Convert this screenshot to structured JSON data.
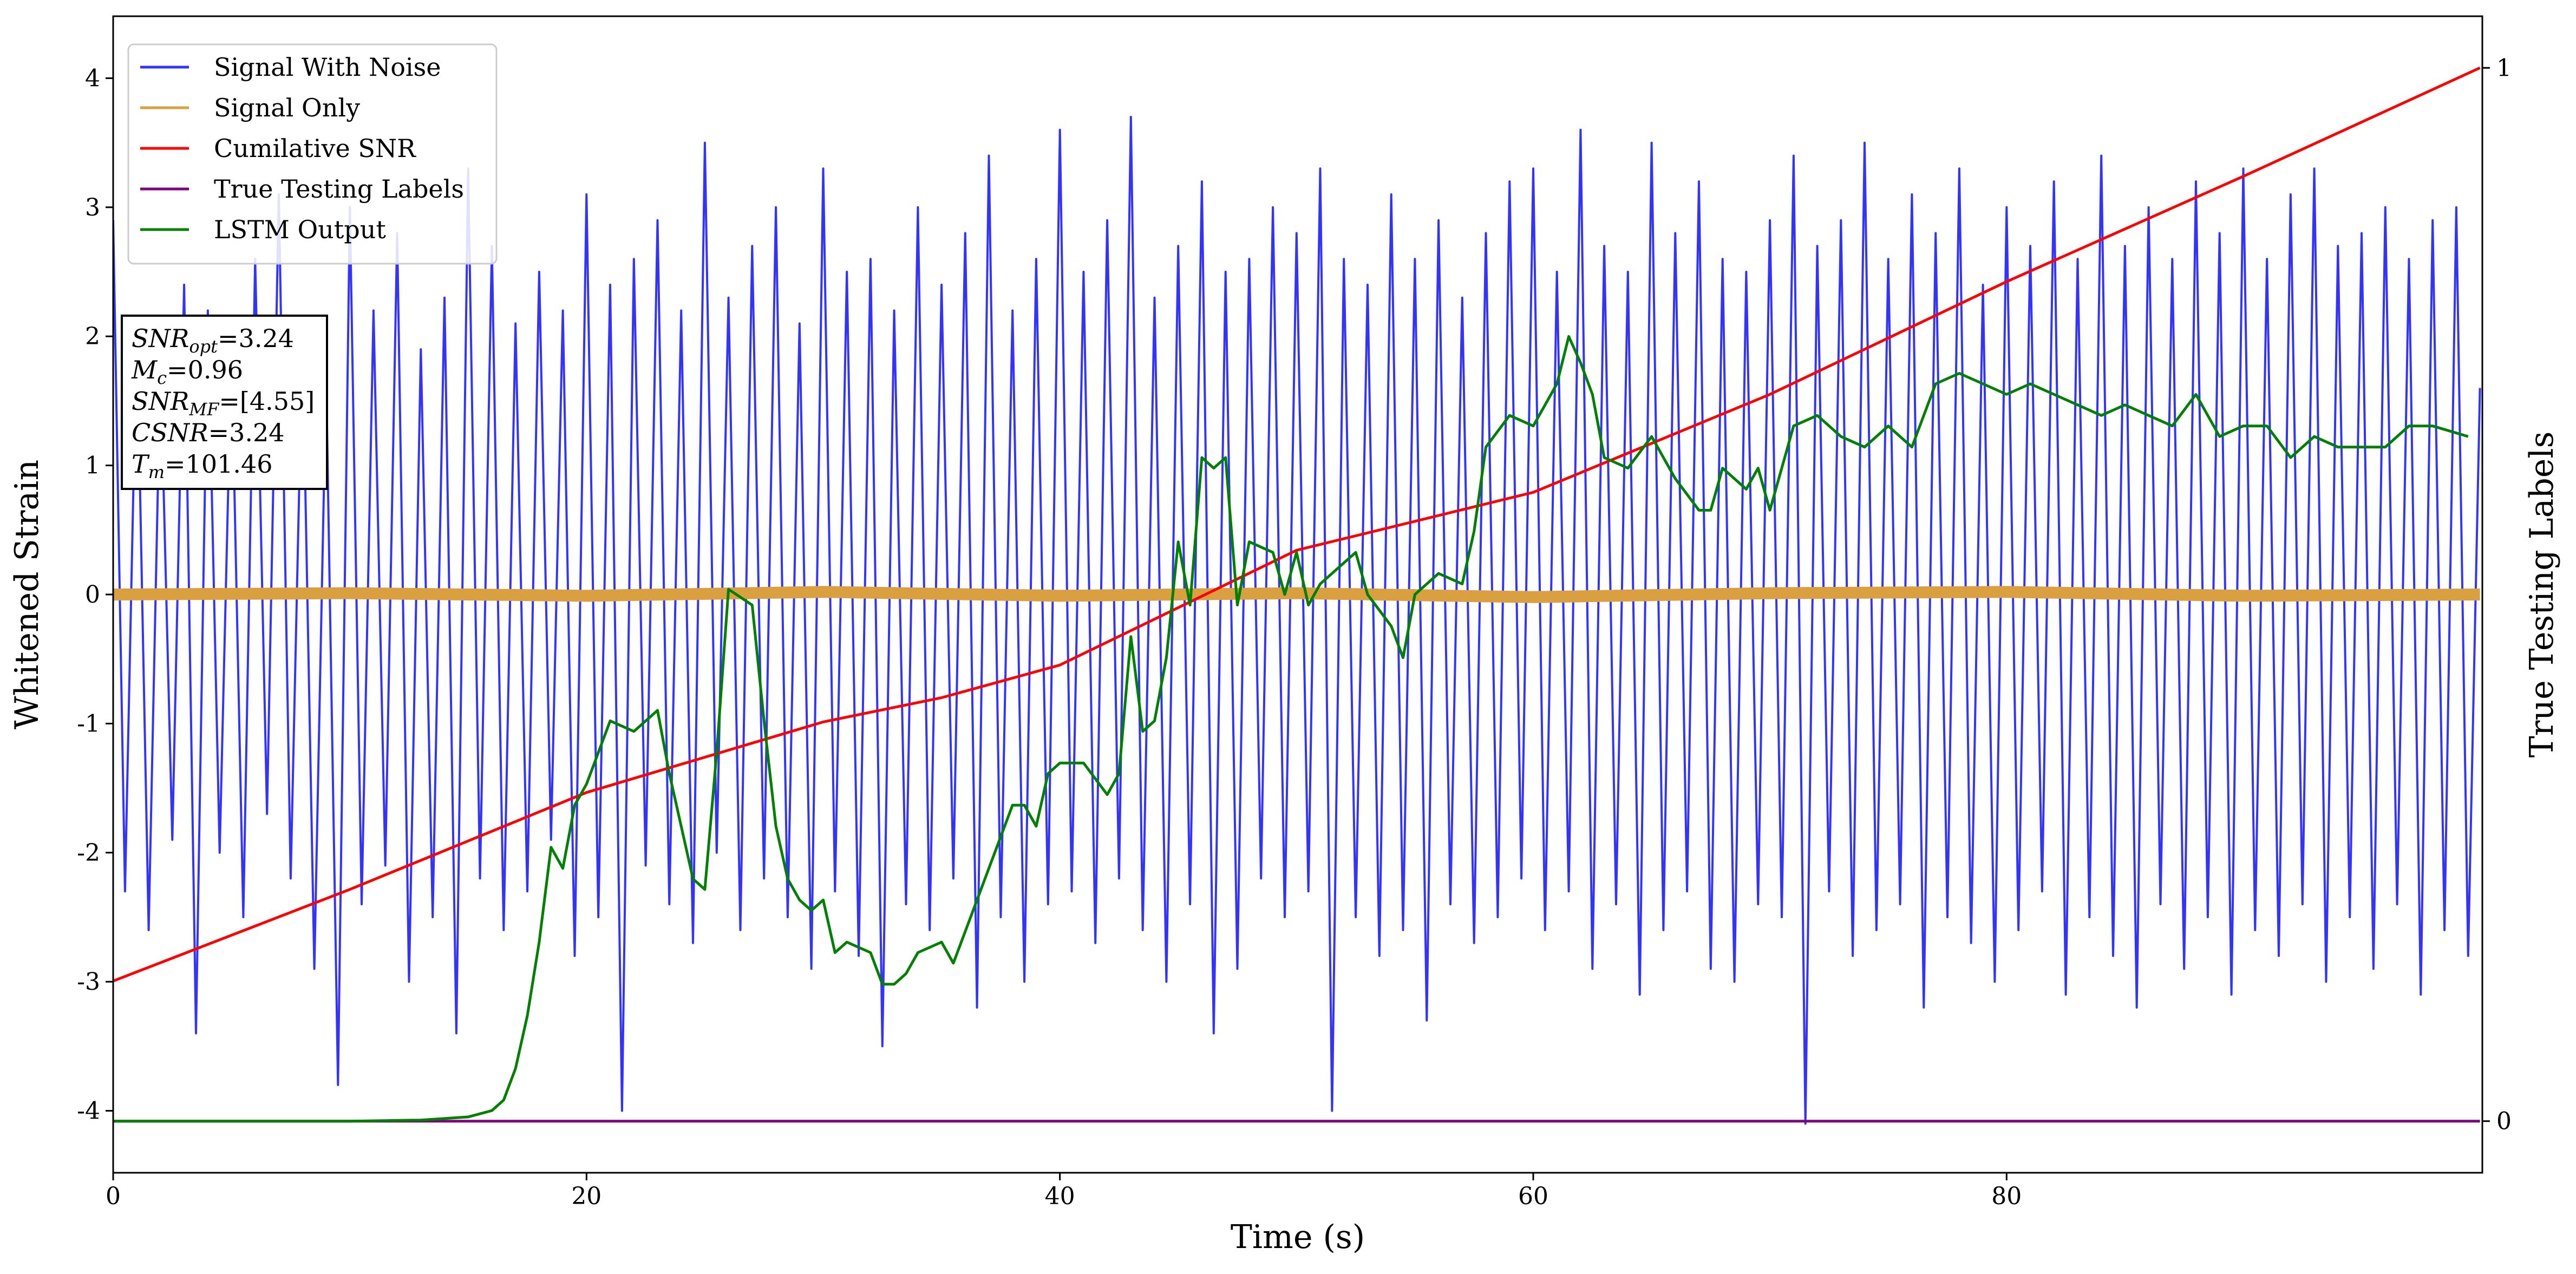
{
  "chart_data": {
    "type": "line",
    "xlabel": "Time (s)",
    "ylabel": "Whitened Strain",
    "y2label": "True Testing Labels",
    "xlim": [
      0,
      100.1
    ],
    "ylim": [
      -4.48,
      4.48
    ],
    "y2lim": [
      -0.049,
      1.049
    ],
    "xticks": [
      0,
      20,
      40,
      60,
      80
    ],
    "yticks": [
      -4,
      -3,
      -2,
      -1,
      0,
      1,
      2,
      3,
      4
    ],
    "y2ticks": [
      0,
      1
    ],
    "legend": "upper left",
    "annotation": [
      {
        "base": "SNR",
        "sub": "opt",
        "text": "=3.24"
      },
      {
        "base": "M",
        "sub": "c",
        "text": "=0.96"
      },
      {
        "base": "SNR",
        "sub": "MF",
        "text": "=[4.55]"
      },
      {
        "base": "CSNR",
        "sub": null,
        "text": "=3.24"
      },
      {
        "base": "T",
        "sub": "m",
        "text": "=101.46"
      }
    ],
    "series": [
      {
        "name": "Signal With Noise",
        "color": "#3333ff",
        "axis": "y",
        "x": [
          0,
          0.5,
          1,
          1.5,
          2,
          2.5,
          3,
          3.5,
          4,
          4.5,
          5,
          5.5,
          6,
          6.5,
          7,
          7.5,
          8,
          8.5,
          9,
          9.5,
          10,
          10.5,
          11,
          11.5,
          12,
          12.5,
          13,
          13.5,
          14,
          14.5,
          15,
          15.5,
          16,
          16.5,
          17,
          17.5,
          18,
          18.5,
          19,
          19.5,
          20,
          20.5,
          21,
          21.5,
          22,
          22.5,
          23,
          23.5,
          24,
          24.5,
          25,
          25.5,
          26,
          26.5,
          27,
          27.5,
          28,
          28.5,
          29,
          29.5,
          30,
          30.5,
          31,
          31.5,
          32,
          32.5,
          33,
          33.5,
          34,
          34.5,
          35,
          35.5,
          36,
          36.5,
          37,
          37.5,
          38,
          38.5,
          39,
          39.5,
          40,
          40.5,
          41,
          41.5,
          42,
          42.5,
          43,
          43.5,
          44,
          44.5,
          45,
          45.5,
          46,
          46.5,
          47,
          47.5,
          48,
          48.5,
          49,
          49.5,
          50,
          50.5,
          51,
          51.5,
          52,
          52.5,
          53,
          53.5,
          54,
          54.5,
          55,
          55.5,
          56,
          56.5,
          57,
          57.5,
          58,
          58.5,
          59,
          59.5,
          60,
          60.5,
          61,
          61.5,
          62,
          62.5,
          63,
          63.5,
          64,
          64.5,
          65,
          65.5,
          66,
          66.5,
          67,
          67.5,
          68,
          68.5,
          69,
          69.5,
          70,
          70.5,
          71,
          71.5,
          72,
          72.5,
          73,
          73.5,
          74,
          74.5,
          75,
          75.5,
          76,
          76.5,
          77,
          77.5,
          78,
          78.5,
          79,
          79.5,
          80,
          80.5,
          81,
          81.5,
          82,
          82.5,
          83,
          83.5,
          84,
          84.5,
          85,
          85.5,
          86,
          86.5,
          87,
          87.5,
          88,
          88.5,
          89,
          89.5,
          90,
          90.5,
          91,
          91.5,
          92,
          92.5,
          93,
          93.5,
          94,
          94.5,
          95,
          95.5,
          96,
          96.5,
          97,
          97.5,
          98,
          98.5,
          99,
          99.5,
          100
        ],
        "values": [
          2.9,
          -2.3,
          2.1,
          -2.6,
          1.8,
          -1.9,
          2.4,
          -3.4,
          2.2,
          -2.0,
          1.9,
          -2.5,
          2.6,
          -1.7,
          3.1,
          -2.2,
          2.0,
          -2.9,
          1.7,
          -3.8,
          3.0,
          -2.4,
          2.2,
          -2.1,
          2.8,
          -3.0,
          1.9,
          -2.5,
          2.3,
          -3.4,
          3.3,
          -2.2,
          2.7,
          -2.6,
          2.1,
          -2.3,
          2.5,
          -1.9,
          2.2,
          -2.8,
          3.1,
          -2.5,
          2.4,
          -4.0,
          2.6,
          -2.1,
          2.9,
          -2.4,
          2.2,
          -2.7,
          3.5,
          -2.0,
          2.3,
          -2.6,
          2.7,
          -2.2,
          3.0,
          -2.5,
          2.1,
          -2.9,
          3.3,
          -2.3,
          2.5,
          -2.8,
          2.6,
          -3.5,
          2.2,
          -2.4,
          3.0,
          -2.6,
          2.4,
          -2.2,
          2.8,
          -3.2,
          3.4,
          -2.5,
          2.2,
          -3.0,
          2.6,
          -2.4,
          3.6,
          -2.3,
          2.5,
          -2.7,
          2.9,
          -2.2,
          3.7,
          -2.6,
          2.3,
          -3.0,
          2.7,
          -2.4,
          3.2,
          -3.4,
          2.5,
          -2.9,
          2.6,
          -2.2,
          3.0,
          -2.5,
          2.8,
          -2.3,
          3.3,
          -4.0,
          2.6,
          -2.5,
          2.4,
          -2.8,
          3.1,
          -2.6,
          2.6,
          -3.3,
          2.9,
          -2.4,
          2.3,
          -2.7,
          2.8,
          -2.5,
          3.2,
          -2.2,
          3.3,
          -2.6,
          2.5,
          -2.3,
          3.6,
          -2.9,
          2.7,
          -2.4,
          2.5,
          -3.1,
          3.5,
          -2.6,
          2.8,
          -2.3,
          3.2,
          -2.9,
          2.6,
          -3.0,
          2.5,
          -2.4,
          2.9,
          -2.5,
          3.4,
          -4.1,
          2.7,
          -2.3,
          2.9,
          -2.8,
          3.5,
          -2.6,
          2.6,
          -2.4,
          3.1,
          -3.2,
          2.8,
          -2.5,
          3.3,
          -2.7,
          2.4,
          -3.0,
          3.0,
          -2.6,
          2.7,
          -2.3,
          3.2,
          -3.1,
          2.6,
          -2.5,
          3.4,
          -2.8,
          2.7,
          -3.2,
          3.0,
          -2.4,
          2.6,
          -2.9,
          3.2,
          -2.5,
          2.8,
          -3.1,
          3.3,
          -2.6,
          2.6,
          -2.8,
          3.1,
          -2.4,
          3.3,
          -3.0,
          2.7,
          -2.5,
          2.8,
          -2.9,
          3.0,
          -2.4,
          2.6,
          -3.1,
          2.9,
          -2.6,
          3.0,
          -2.8,
          1.6
        ]
      },
      {
        "name": "Signal Only",
        "color": "#daa040",
        "axis": "y",
        "x": [
          0,
          10,
          20,
          30,
          40,
          50,
          60,
          70,
          80,
          90,
          100
        ],
        "values": [
          0,
          0.01,
          -0.01,
          0.02,
          -0.01,
          0.01,
          -0.02,
          0.01,
          0.02,
          -0.01,
          0
        ]
      },
      {
        "name": "Cumilative SNR",
        "color": "#ff0000",
        "axis": "y2",
        "x": [
          0,
          10,
          20,
          30,
          35,
          40,
          50,
          60,
          70,
          80,
          90,
          100
        ],
        "values": [
          0.133,
          0.22,
          0.312,
          0.379,
          0.402,
          0.433,
          0.542,
          0.597,
          0.69,
          0.797,
          0.897,
          1.0
        ]
      },
      {
        "name": "True Testing Labels",
        "color": "#800080",
        "axis": "y2",
        "x": [
          0,
          100
        ],
        "values": [
          0,
          0
        ]
      },
      {
        "name": "LSTM Output",
        "color": "#008000",
        "axis": "y2",
        "x": [
          0,
          5,
          10,
          13,
          15,
          16,
          16.5,
          17,
          17.5,
          18,
          18.5,
          19,
          19.5,
          20,
          20.5,
          21,
          22,
          23,
          23.5,
          24,
          24.5,
          25,
          25.5,
          26,
          27,
          27.5,
          28,
          28.5,
          29,
          29.5,
          30,
          30.5,
          31,
          32,
          32.5,
          33,
          33.5,
          34,
          35,
          35.5,
          36,
          37,
          38,
          38.5,
          39,
          39.5,
          40,
          41,
          42,
          42.5,
          43,
          43.5,
          44,
          44.5,
          45,
          45.5,
          46,
          46.5,
          47,
          47.5,
          48,
          49,
          49.5,
          50,
          50.5,
          51,
          52,
          52.5,
          53,
          54,
          54.5,
          55,
          56,
          57,
          57.5,
          58,
          59,
          60,
          61,
          61.5,
          62,
          62.5,
          63,
          64,
          65,
          66,
          67,
          67.5,
          68,
          69,
          69.5,
          70,
          71,
          72,
          73,
          74,
          75,
          76,
          77,
          78,
          79,
          80,
          81,
          82,
          83,
          84,
          85,
          86,
          87,
          88,
          89,
          90,
          91,
          92,
          93,
          94,
          95,
          96,
          97,
          98,
          99.5
        ],
        "values": [
          0,
          0,
          0,
          0.001,
          0.004,
          0.01,
          0.02,
          0.05,
          0.1,
          0.17,
          0.26,
          0.24,
          0.3,
          0.32,
          0.35,
          0.38,
          0.37,
          0.39,
          0.33,
          0.28,
          0.23,
          0.22,
          0.35,
          0.505,
          0.49,
          0.38,
          0.28,
          0.23,
          0.21,
          0.2,
          0.21,
          0.16,
          0.17,
          0.16,
          0.13,
          0.13,
          0.14,
          0.16,
          0.17,
          0.15,
          0.18,
          0.24,
          0.3,
          0.3,
          0.28,
          0.33,
          0.34,
          0.34,
          0.31,
          0.33,
          0.46,
          0.37,
          0.38,
          0.44,
          0.55,
          0.49,
          0.63,
          0.62,
          0.63,
          0.49,
          0.55,
          0.54,
          0.5,
          0.54,
          0.49,
          0.51,
          0.53,
          0.54,
          0.5,
          0.47,
          0.44,
          0.5,
          0.52,
          0.51,
          0.56,
          0.64,
          0.67,
          0.66,
          0.7,
          0.745,
          0.72,
          0.69,
          0.63,
          0.62,
          0.65,
          0.61,
          0.58,
          0.58,
          0.62,
          0.6,
          0.62,
          0.58,
          0.66,
          0.67,
          0.65,
          0.64,
          0.66,
          0.64,
          0.7,
          0.71,
          0.7,
          0.69,
          0.7,
          0.69,
          0.68,
          0.67,
          0.68,
          0.67,
          0.66,
          0.69,
          0.65,
          0.66,
          0.66,
          0.63,
          0.65,
          0.64,
          0.64,
          0.64,
          0.66,
          0.66,
          0.65
        ]
      }
    ]
  }
}
